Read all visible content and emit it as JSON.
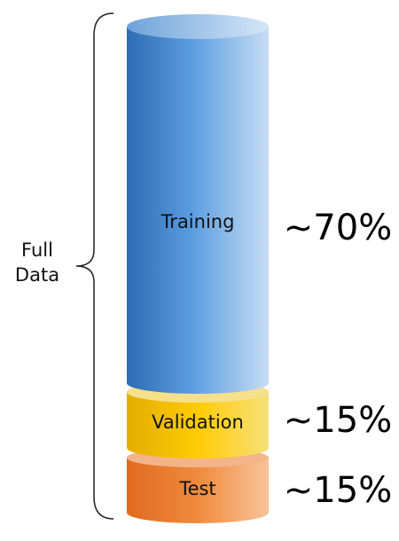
{
  "bracket_label": [
    "Full",
    "Data"
  ],
  "segments": [
    {
      "label": "Training",
      "percent": "~70%",
      "color": "#4a90d9"
    },
    {
      "label": "Validation",
      "percent": "~15%",
      "color": "#f5c400"
    },
    {
      "label": "Test",
      "percent": "~15%",
      "color": "#f08a3c"
    }
  ]
}
